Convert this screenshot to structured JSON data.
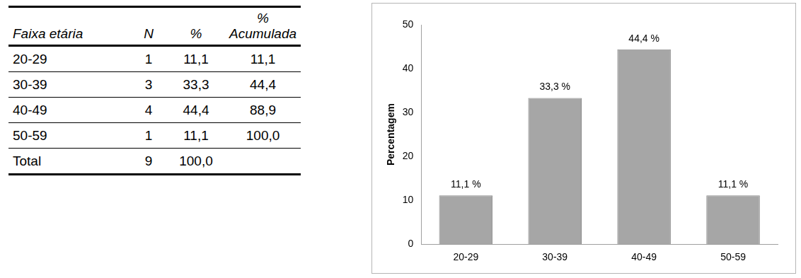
{
  "table": {
    "header": [
      "Faixa etária",
      "N",
      "%",
      "% Acumulada"
    ],
    "rows": [
      [
        "20-29",
        "1",
        "11,1",
        "11,1"
      ],
      [
        "30-39",
        "3",
        "33,3",
        "44,4"
      ],
      [
        "40-49",
        "4",
        "44,4",
        "88,9"
      ],
      [
        "50-59",
        "1",
        "11,1",
        "100,0"
      ],
      [
        "Total",
        "9",
        "100,0",
        null
      ]
    ]
  },
  "chart_data": {
    "type": "bar",
    "y_label": "Percentagem",
    "categories": [
      "20-29",
      "30-39",
      "40-49",
      "50-59"
    ],
    "values": [
      11.1,
      33.3,
      44.4,
      11.1
    ],
    "value_labels": [
      "11,1 %",
      "33,3 %",
      "44,4 %",
      "11,1 %"
    ],
    "color": "#a6a6a6",
    "ylim": [
      0,
      50
    ],
    "yticks": [
      0,
      10,
      20,
      30,
      40,
      50
    ],
    "grid": false,
    "data_labels": true
  }
}
